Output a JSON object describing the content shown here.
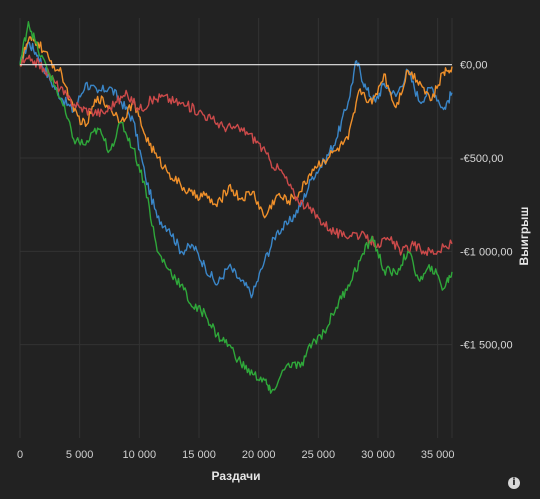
{
  "chart_data": {
    "type": "line",
    "title": "",
    "xlabel": "Раздачи",
    "ylabel": "Выигрыш",
    "xlim": [
      0,
      36200
    ],
    "ylim": [
      -2000,
      250
    ],
    "x_ticks": [
      0,
      5000,
      10000,
      15000,
      20000,
      25000,
      30000,
      35000
    ],
    "x_tick_labels": [
      "0",
      "5 000",
      "10 000",
      "15 000",
      "20 000",
      "25 000",
      "30 000",
      "35 000"
    ],
    "y_ticks": [
      0,
      -500,
      -1000,
      -1500
    ],
    "y_tick_labels": [
      "€0,00",
      "-€500,00",
      "-€1 000,00",
      "-€1 500,00"
    ],
    "y_axis_side": "right",
    "grid": true,
    "zero_line": true,
    "series": [
      {
        "color": "#3a86c8",
        "x": [
          0,
          700,
          1500,
          2500,
          3500,
          4500,
          5500,
          6500,
          7500,
          8500,
          9500,
          10500,
          11500,
          12500,
          13500,
          14500,
          15500,
          16500,
          17500,
          18500,
          19500,
          20500,
          21500,
          22500,
          23500,
          24500,
          25500,
          26500,
          27500,
          28200,
          29000,
          29800,
          30500,
          31500,
          32500,
          33500,
          34500,
          35500,
          36200
        ],
        "y": [
          0,
          120,
          50,
          -80,
          -180,
          -250,
          -100,
          -150,
          -120,
          -200,
          -300,
          -600,
          -820,
          -880,
          -1000,
          -970,
          -1080,
          -1180,
          -1080,
          -1160,
          -1230,
          -1050,
          -900,
          -850,
          -760,
          -600,
          -520,
          -400,
          -200,
          20,
          -130,
          -200,
          -100,
          -170,
          -30,
          -200,
          -120,
          -240,
          -150
        ]
      },
      {
        "color": "#f0902a",
        "x": [
          0,
          700,
          1500,
          2500,
          3500,
          4500,
          5500,
          6500,
          7500,
          8500,
          9500,
          10500,
          11500,
          12500,
          13500,
          14500,
          15500,
          16500,
          17500,
          18500,
          19500,
          20500,
          21500,
          22500,
          23500,
          24500,
          25500,
          26500,
          27500,
          28500,
          29500,
          30500,
          31500,
          32500,
          33500,
          34500,
          35500,
          36200
        ],
        "y": [
          0,
          130,
          120,
          20,
          -50,
          -250,
          -330,
          -170,
          -230,
          -300,
          -200,
          -380,
          -500,
          -580,
          -650,
          -700,
          -700,
          -760,
          -650,
          -720,
          -680,
          -820,
          -700,
          -730,
          -680,
          -560,
          -510,
          -460,
          -400,
          -130,
          -210,
          -50,
          -230,
          -30,
          -90,
          -190,
          -40,
          -10
        ]
      },
      {
        "color": "#cc4a4a",
        "x": [
          0,
          1000,
          2000,
          3000,
          4000,
          5000,
          6000,
          7000,
          8000,
          9000,
          10000,
          11000,
          12000,
          13000,
          14000,
          15000,
          16000,
          17000,
          18000,
          19000,
          20000,
          21000,
          22000,
          23000,
          24000,
          25000,
          26000,
          27000,
          28000,
          29000,
          30000,
          31000,
          32000,
          33000,
          34000,
          35000,
          36200
        ],
        "y": [
          0,
          30,
          -20,
          -100,
          -180,
          -230,
          -250,
          -260,
          -200,
          -160,
          -240,
          -190,
          -170,
          -200,
          -220,
          -250,
          -290,
          -330,
          -340,
          -360,
          -420,
          -520,
          -580,
          -700,
          -760,
          -820,
          -880,
          -920,
          -900,
          -930,
          -960,
          -940,
          -1000,
          -970,
          -1000,
          -1000,
          -960
        ]
      },
      {
        "color": "#2fa83a",
        "x": [
          0,
          700,
          1500,
          2500,
          3500,
          4500,
          5500,
          6500,
          7500,
          8500,
          9500,
          10500,
          11500,
          12500,
          13500,
          14500,
          15500,
          16500,
          17500,
          18500,
          19500,
          20500,
          21000,
          22500,
          23500,
          24500,
          25500,
          26500,
          27500,
          28500,
          29500,
          30500,
          31500,
          32500,
          33500,
          34500,
          35500,
          36200
        ],
        "y": [
          0,
          230,
          80,
          -50,
          -200,
          -400,
          -430,
          -340,
          -460,
          -310,
          -450,
          -650,
          -1000,
          -1100,
          -1180,
          -1300,
          -1330,
          -1450,
          -1500,
          -1600,
          -1660,
          -1690,
          -1760,
          -1600,
          -1620,
          -1490,
          -1430,
          -1300,
          -1180,
          -1050,
          -920,
          -1100,
          -1120,
          -1000,
          -1160,
          -1080,
          -1200,
          -1110
        ]
      }
    ]
  },
  "ui": {
    "info_icon": "i"
  }
}
